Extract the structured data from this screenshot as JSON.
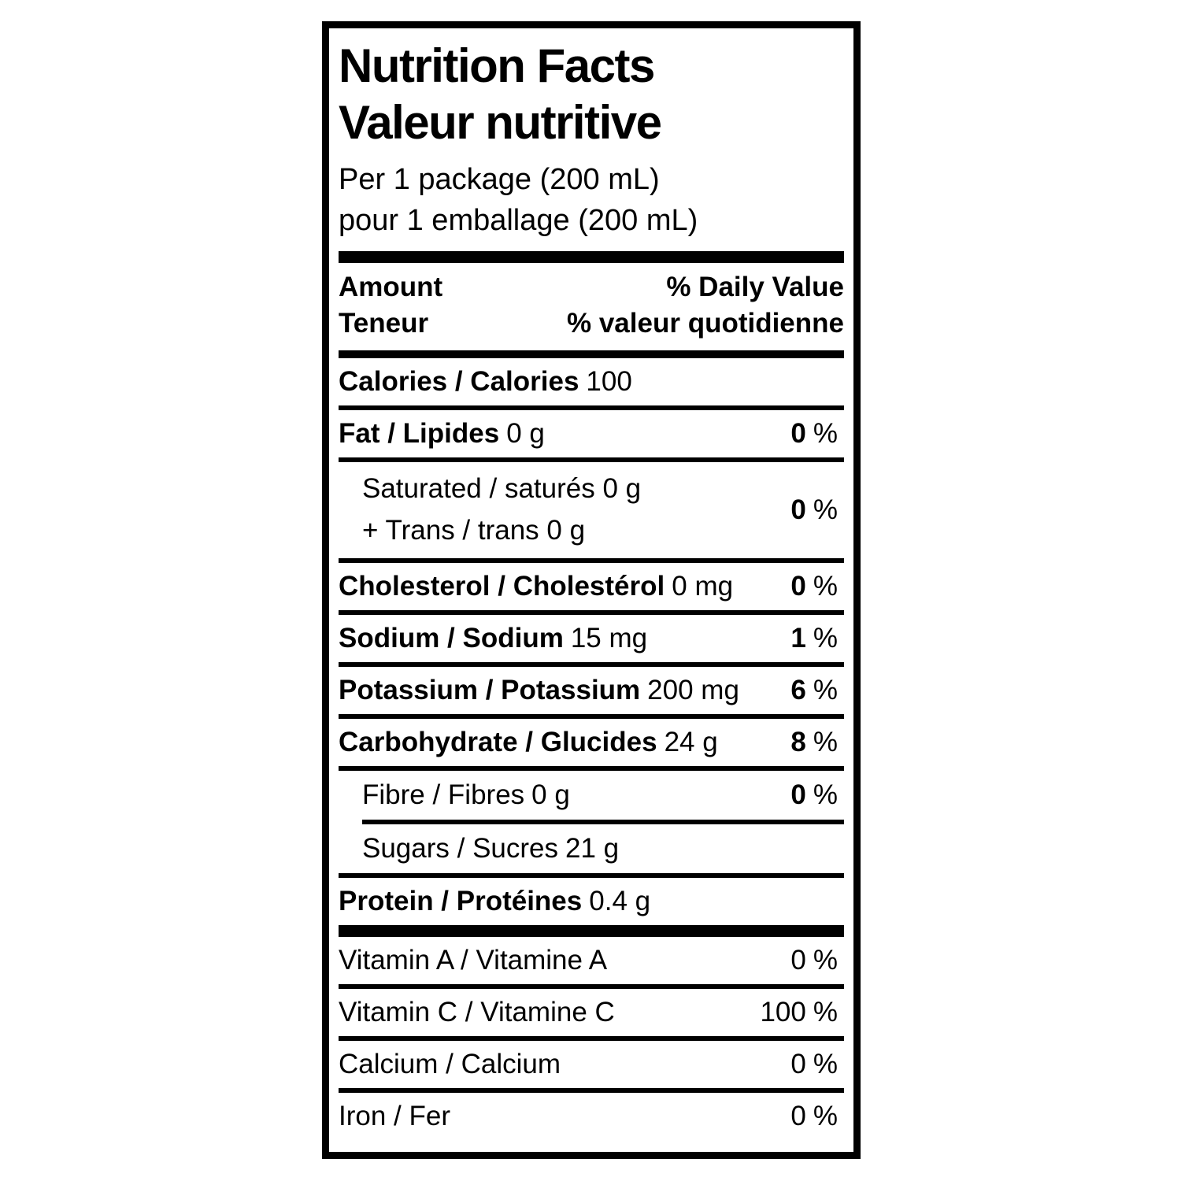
{
  "colors": {
    "text": "#000000",
    "background": "#ffffff",
    "border": "#000000"
  },
  "label": {
    "title_en": "Nutrition Facts",
    "title_fr": "Valeur nutritive",
    "serving_en": "Per 1 package (200 mL)",
    "serving_fr": "pour 1 emballage (200 mL)",
    "columns": {
      "amount_en": "Amount",
      "amount_fr": "Teneur",
      "daily_value_en": "% Daily Value",
      "daily_value_fr": "% valeur quotidienne"
    },
    "calories": {
      "name": "Calories / Calories",
      "amount": "100"
    },
    "nutrients": [
      {
        "name": "Fat / Lipides",
        "amount": "0 g",
        "dv": "0",
        "pct": "%"
      },
      {
        "line1": "Saturated / saturés 0 g",
        "line2": "+ Trans / trans 0 g",
        "dv": "0",
        "pct": "%"
      },
      {
        "name": "Cholesterol / Cholestérol",
        "amount": "0 mg",
        "dv": "0",
        "pct": "%"
      },
      {
        "name": "Sodium / Sodium",
        "amount": "15 mg",
        "dv": "1",
        "pct": "%"
      },
      {
        "name": "Potassium / Potassium",
        "amount": "200 mg",
        "dv": "6",
        "pct": "%"
      },
      {
        "name": "Carbohydrate / Glucides",
        "amount": "24 g",
        "dv": "8",
        "pct": "%"
      },
      {
        "name": "Fibre / Fibres",
        "amount": "0 g",
        "dv": "0",
        "pct": "%"
      },
      {
        "name": "Sugars / Sucres",
        "amount": "21 g"
      },
      {
        "name": "Protein / Protéines",
        "amount": "0.4 g"
      }
    ],
    "micronutrients": [
      {
        "name": "Vitamin A / Vitamine A",
        "dv": "0",
        "pct": "%"
      },
      {
        "name": "Vitamin C / Vitamine C",
        "dv": "100",
        "pct": "%"
      },
      {
        "name": "Calcium / Calcium",
        "dv": "0",
        "pct": "%"
      },
      {
        "name": "Iron / Fer",
        "dv": "0",
        "pct": "%"
      }
    ]
  }
}
